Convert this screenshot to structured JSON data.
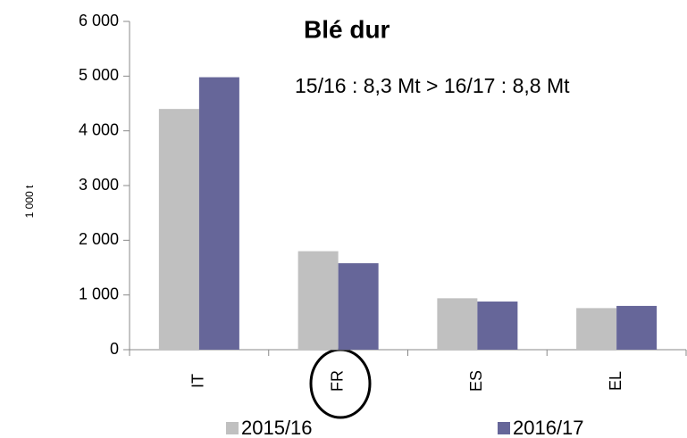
{
  "chart_data": {
    "type": "bar",
    "title": "Blé dur",
    "subtitle": "15/16 : 8,3 Mt > 16/17 : 8,8 Mt",
    "y_label": "1 000 t",
    "categories": [
      "IT",
      "FR",
      "ES",
      "EL"
    ],
    "series": [
      {
        "name": "2015/16",
        "color": "#c0c0c0",
        "values": [
          4400,
          1800,
          940,
          760
        ]
      },
      {
        "name": "2016/17",
        "color": "#666699",
        "values": [
          4980,
          1580,
          880,
          800
        ]
      }
    ],
    "ylim": [
      0,
      6000
    ],
    "yticks": [
      0,
      {
        "value": 1000,
        "label": "1 000"
      },
      {
        "value": 2000,
        "label": "2 000"
      },
      {
        "value": 3000,
        "label": "3 000"
      },
      {
        "value": 4000,
        "label": "4 000"
      },
      {
        "value": 5000,
        "label": "5 000"
      },
      {
        "value": 6000,
        "label": "6 000"
      }
    ],
    "legend": "bottom"
  }
}
